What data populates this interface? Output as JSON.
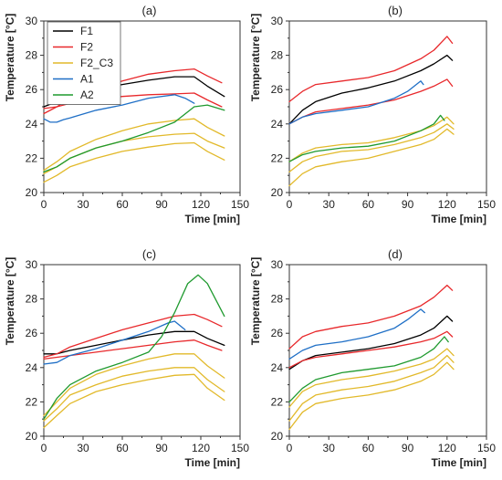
{
  "chart_data": [
    {
      "type": "line",
      "panel": "(a)",
      "xlabel": "Time [min]",
      "ylabel": "Temperature [°C]",
      "xlim": [
        0,
        150
      ],
      "ylim": [
        20,
        30
      ],
      "xticks": [
        0,
        30,
        60,
        90,
        120,
        150
      ],
      "yticks": [
        20,
        22,
        24,
        26,
        28,
        30
      ],
      "grid": false,
      "legend": {
        "placement": "top-left",
        "entries": [
          "F1",
          "F2",
          "F2_C3",
          "A1",
          "A2"
        ]
      },
      "series": [
        {
          "name": "F1",
          "color": "#000000",
          "x": [
            0,
            10,
            20,
            40,
            60,
            80,
            100,
            115,
            125,
            138
          ],
          "y": [
            25.0,
            25.3,
            25.6,
            26.0,
            26.3,
            26.55,
            26.75,
            26.75,
            26.2,
            25.6
          ]
        },
        {
          "name": "F2",
          "color": "#e8282b",
          "x": [
            0,
            10,
            20,
            40,
            60,
            80,
            100,
            115,
            125,
            136
          ],
          "y": [
            24.6,
            25.0,
            25.5,
            26.0,
            26.5,
            26.9,
            27.1,
            27.2,
            26.8,
            26.4
          ]
        },
        {
          "color": "#e8282b",
          "x": [
            0,
            10,
            20,
            40,
            60,
            80,
            100,
            115,
            125,
            136
          ],
          "y": [
            24.9,
            25.0,
            25.2,
            25.4,
            25.6,
            25.7,
            25.75,
            25.8,
            25.4,
            25.0
          ]
        },
        {
          "name": "F2_C3",
          "color": "#e2b92a",
          "x": [
            0,
            10,
            20,
            40,
            60,
            80,
            100,
            115,
            125,
            138
          ],
          "y": [
            21.3,
            21.8,
            22.4,
            23.1,
            23.6,
            24.0,
            24.2,
            24.3,
            23.8,
            23.3
          ]
        },
        {
          "color": "#e2b92a",
          "x": [
            0,
            10,
            20,
            40,
            60,
            80,
            100,
            115,
            125,
            138
          ],
          "y": [
            21.1,
            21.5,
            22.0,
            22.6,
            23.0,
            23.25,
            23.4,
            23.45,
            23.0,
            22.6
          ]
        },
        {
          "color": "#e2b92a",
          "x": [
            0,
            10,
            20,
            40,
            60,
            80,
            100,
            115,
            125,
            138
          ],
          "y": [
            20.6,
            21.0,
            21.5,
            22.0,
            22.4,
            22.65,
            22.85,
            22.9,
            22.4,
            21.9
          ]
        },
        {
          "name": "A1",
          "color": "#1f6fc6",
          "x": [
            0,
            5,
            10,
            15,
            20,
            40,
            60,
            80,
            100,
            108,
            115
          ],
          "y": [
            24.3,
            24.1,
            24.1,
            24.25,
            24.35,
            24.8,
            25.1,
            25.5,
            25.7,
            25.5,
            25.2
          ]
        },
        {
          "name": "A2",
          "color": "#1f9a2f",
          "x": [
            0,
            10,
            20,
            40,
            60,
            80,
            100,
            115,
            125,
            138
          ],
          "y": [
            21.2,
            21.5,
            22.0,
            22.6,
            23.0,
            23.5,
            24.1,
            25.0,
            25.1,
            24.8
          ]
        }
      ]
    },
    {
      "type": "line",
      "panel": "(b)",
      "xlabel": "Time [min]",
      "ylabel": "Temperature [°C]",
      "xlim": [
        0,
        150
      ],
      "ylim": [
        20,
        30
      ],
      "xticks": [
        0,
        30,
        60,
        90,
        120,
        150
      ],
      "yticks": [
        20,
        22,
        24,
        26,
        28,
        30
      ],
      "grid": false,
      "series": [
        {
          "name": "F1",
          "color": "#000000",
          "x": [
            0,
            10,
            20,
            40,
            60,
            80,
            100,
            110,
            120,
            124
          ],
          "y": [
            24.0,
            24.8,
            25.3,
            25.8,
            26.1,
            26.5,
            27.1,
            27.5,
            28.0,
            27.7
          ]
        },
        {
          "name": "F2",
          "color": "#e8282b",
          "x": [
            0,
            10,
            20,
            40,
            60,
            80,
            100,
            110,
            120,
            124
          ],
          "y": [
            25.3,
            25.9,
            26.3,
            26.5,
            26.7,
            27.1,
            27.8,
            28.3,
            29.1,
            28.7
          ]
        },
        {
          "color": "#e8282b",
          "x": [
            0,
            10,
            20,
            40,
            60,
            80,
            100,
            110,
            120,
            124
          ],
          "y": [
            24.0,
            24.4,
            24.7,
            24.9,
            25.1,
            25.4,
            25.9,
            26.2,
            26.6,
            26.2
          ]
        },
        {
          "name": "F2_C3",
          "color": "#e2b92a",
          "x": [
            0,
            10,
            20,
            40,
            60,
            80,
            100,
            110,
            120,
            125
          ],
          "y": [
            21.8,
            22.3,
            22.6,
            22.8,
            22.9,
            23.2,
            23.6,
            23.9,
            24.4,
            24.0
          ]
        },
        {
          "color": "#e2b92a",
          "x": [
            0,
            10,
            20,
            40,
            60,
            80,
            100,
            110,
            120,
            125
          ],
          "y": [
            21.2,
            21.8,
            22.1,
            22.4,
            22.5,
            22.8,
            23.2,
            23.5,
            24.0,
            23.7
          ]
        },
        {
          "color": "#e2b92a",
          "x": [
            0,
            10,
            20,
            40,
            60,
            80,
            100,
            110,
            120,
            125
          ],
          "y": [
            20.4,
            21.1,
            21.5,
            21.8,
            22.0,
            22.4,
            22.8,
            23.1,
            23.7,
            23.4
          ]
        },
        {
          "name": "A1",
          "color": "#1f6fc6",
          "x": [
            0,
            10,
            20,
            40,
            60,
            80,
            90,
            100,
            102
          ],
          "y": [
            24.0,
            24.4,
            24.6,
            24.8,
            25.0,
            25.5,
            25.9,
            26.5,
            26.3
          ]
        },
        {
          "name": "A2",
          "color": "#1f9a2f",
          "x": [
            0,
            10,
            20,
            40,
            60,
            80,
            100,
            110,
            115,
            118
          ],
          "y": [
            21.8,
            22.2,
            22.4,
            22.6,
            22.7,
            23.0,
            23.6,
            24.0,
            24.5,
            24.2
          ]
        }
      ]
    },
    {
      "type": "line",
      "panel": "(c)",
      "xlabel": "Time [min]",
      "ylabel": "Temperature [°C]",
      "xlim": [
        0,
        150
      ],
      "ylim": [
        20,
        30
      ],
      "xticks": [
        0,
        30,
        60,
        90,
        120,
        150
      ],
      "yticks": [
        20,
        22,
        24,
        26,
        28,
        30
      ],
      "grid": false,
      "series": [
        {
          "name": "F1",
          "color": "#000000",
          "x": [
            0,
            10,
            20,
            40,
            60,
            80,
            100,
            115,
            125,
            138
          ],
          "y": [
            24.8,
            24.8,
            25.0,
            25.3,
            25.6,
            25.9,
            26.1,
            26.1,
            25.7,
            25.3
          ]
        },
        {
          "name": "F2",
          "color": "#e8282b",
          "x": [
            0,
            10,
            20,
            40,
            60,
            80,
            100,
            115,
            125,
            136
          ],
          "y": [
            24.6,
            24.8,
            25.2,
            25.7,
            26.2,
            26.6,
            27.0,
            27.1,
            26.8,
            26.4
          ]
        },
        {
          "color": "#e8282b",
          "x": [
            0,
            10,
            20,
            40,
            60,
            80,
            100,
            115,
            125,
            136
          ],
          "y": [
            24.5,
            24.6,
            24.7,
            24.9,
            25.1,
            25.3,
            25.5,
            25.6,
            25.3,
            25.0
          ]
        },
        {
          "name": "F2_C3",
          "color": "#e2b92a",
          "x": [
            0,
            10,
            20,
            40,
            60,
            80,
            100,
            115,
            125,
            138
          ],
          "y": [
            21.2,
            22.0,
            22.8,
            23.6,
            24.1,
            24.5,
            24.8,
            24.8,
            24.1,
            23.4
          ]
        },
        {
          "color": "#e2b92a",
          "x": [
            0,
            10,
            20,
            40,
            60,
            80,
            100,
            115,
            125,
            138
          ],
          "y": [
            20.9,
            21.6,
            22.4,
            23.0,
            23.5,
            23.8,
            24.0,
            24.0,
            23.3,
            22.6
          ]
        },
        {
          "color": "#e2b92a",
          "x": [
            0,
            10,
            20,
            40,
            60,
            80,
            100,
            115,
            125,
            138
          ],
          "y": [
            20.5,
            21.2,
            21.9,
            22.6,
            23.0,
            23.3,
            23.55,
            23.6,
            22.8,
            22.1
          ]
        },
        {
          "name": "A1",
          "color": "#1f6fc6",
          "x": [
            0,
            10,
            20,
            40,
            60,
            80,
            95,
            100,
            108
          ],
          "y": [
            24.2,
            24.3,
            24.7,
            25.1,
            25.6,
            26.1,
            26.6,
            26.7,
            26.2
          ]
        },
        {
          "name": "A2",
          "color": "#1f9a2f",
          "x": [
            0,
            10,
            20,
            40,
            60,
            80,
            90,
            100,
            110,
            118,
            125,
            138
          ],
          "y": [
            21.0,
            22.2,
            23.0,
            23.8,
            24.3,
            24.9,
            25.8,
            27.2,
            28.9,
            29.4,
            28.9,
            27.0
          ]
        }
      ]
    },
    {
      "type": "line",
      "panel": "(d)",
      "xlabel": "Time [min]",
      "ylabel": "Temperature [°C]",
      "xlim": [
        0,
        150
      ],
      "ylim": [
        20,
        30
      ],
      "xticks": [
        0,
        30,
        60,
        90,
        120,
        150
      ],
      "yticks": [
        20,
        22,
        24,
        26,
        28,
        30
      ],
      "grid": false,
      "series": [
        {
          "name": "F1",
          "color": "#000000",
          "x": [
            0,
            10,
            20,
            40,
            60,
            80,
            100,
            110,
            120,
            124
          ],
          "y": [
            23.9,
            24.4,
            24.7,
            24.9,
            25.1,
            25.4,
            25.9,
            26.3,
            27.0,
            26.7
          ]
        },
        {
          "name": "F2",
          "color": "#e8282b",
          "x": [
            0,
            10,
            20,
            40,
            60,
            80,
            100,
            110,
            120,
            124
          ],
          "y": [
            25.1,
            25.8,
            26.1,
            26.4,
            26.6,
            27.0,
            27.6,
            28.1,
            28.8,
            28.5
          ]
        },
        {
          "color": "#e8282b",
          "x": [
            0,
            10,
            20,
            40,
            60,
            80,
            100,
            110,
            120,
            124
          ],
          "y": [
            24.0,
            24.4,
            24.6,
            24.8,
            25.0,
            25.2,
            25.5,
            25.7,
            26.1,
            25.8
          ]
        },
        {
          "name": "F2_C3",
          "color": "#e2b92a",
          "x": [
            0,
            10,
            20,
            40,
            60,
            80,
            100,
            110,
            120,
            125
          ],
          "y": [
            21.7,
            22.6,
            23.0,
            23.3,
            23.5,
            23.8,
            24.2,
            24.5,
            25.1,
            24.7
          ]
        },
        {
          "color": "#e2b92a",
          "x": [
            0,
            10,
            20,
            40,
            60,
            80,
            100,
            110,
            120,
            125
          ],
          "y": [
            20.9,
            21.9,
            22.4,
            22.7,
            22.9,
            23.2,
            23.7,
            24.0,
            24.7,
            24.3
          ]
        },
        {
          "color": "#e2b92a",
          "x": [
            0,
            10,
            20,
            40,
            60,
            80,
            100,
            110,
            120,
            125
          ],
          "y": [
            20.4,
            21.4,
            21.9,
            22.2,
            22.4,
            22.7,
            23.2,
            23.6,
            24.3,
            23.9
          ]
        },
        {
          "name": "A1",
          "color": "#1f6fc6",
          "x": [
            0,
            10,
            20,
            40,
            60,
            80,
            90,
            100,
            103
          ],
          "y": [
            24.5,
            25.0,
            25.3,
            25.5,
            25.8,
            26.3,
            26.8,
            27.4,
            27.2
          ]
        },
        {
          "name": "A2",
          "color": "#1f9a2f",
          "x": [
            0,
            10,
            20,
            40,
            60,
            80,
            100,
            110,
            118,
            121
          ],
          "y": [
            22.0,
            22.8,
            23.3,
            23.7,
            23.9,
            24.1,
            24.6,
            25.1,
            25.8,
            25.5
          ]
        }
      ]
    }
  ]
}
